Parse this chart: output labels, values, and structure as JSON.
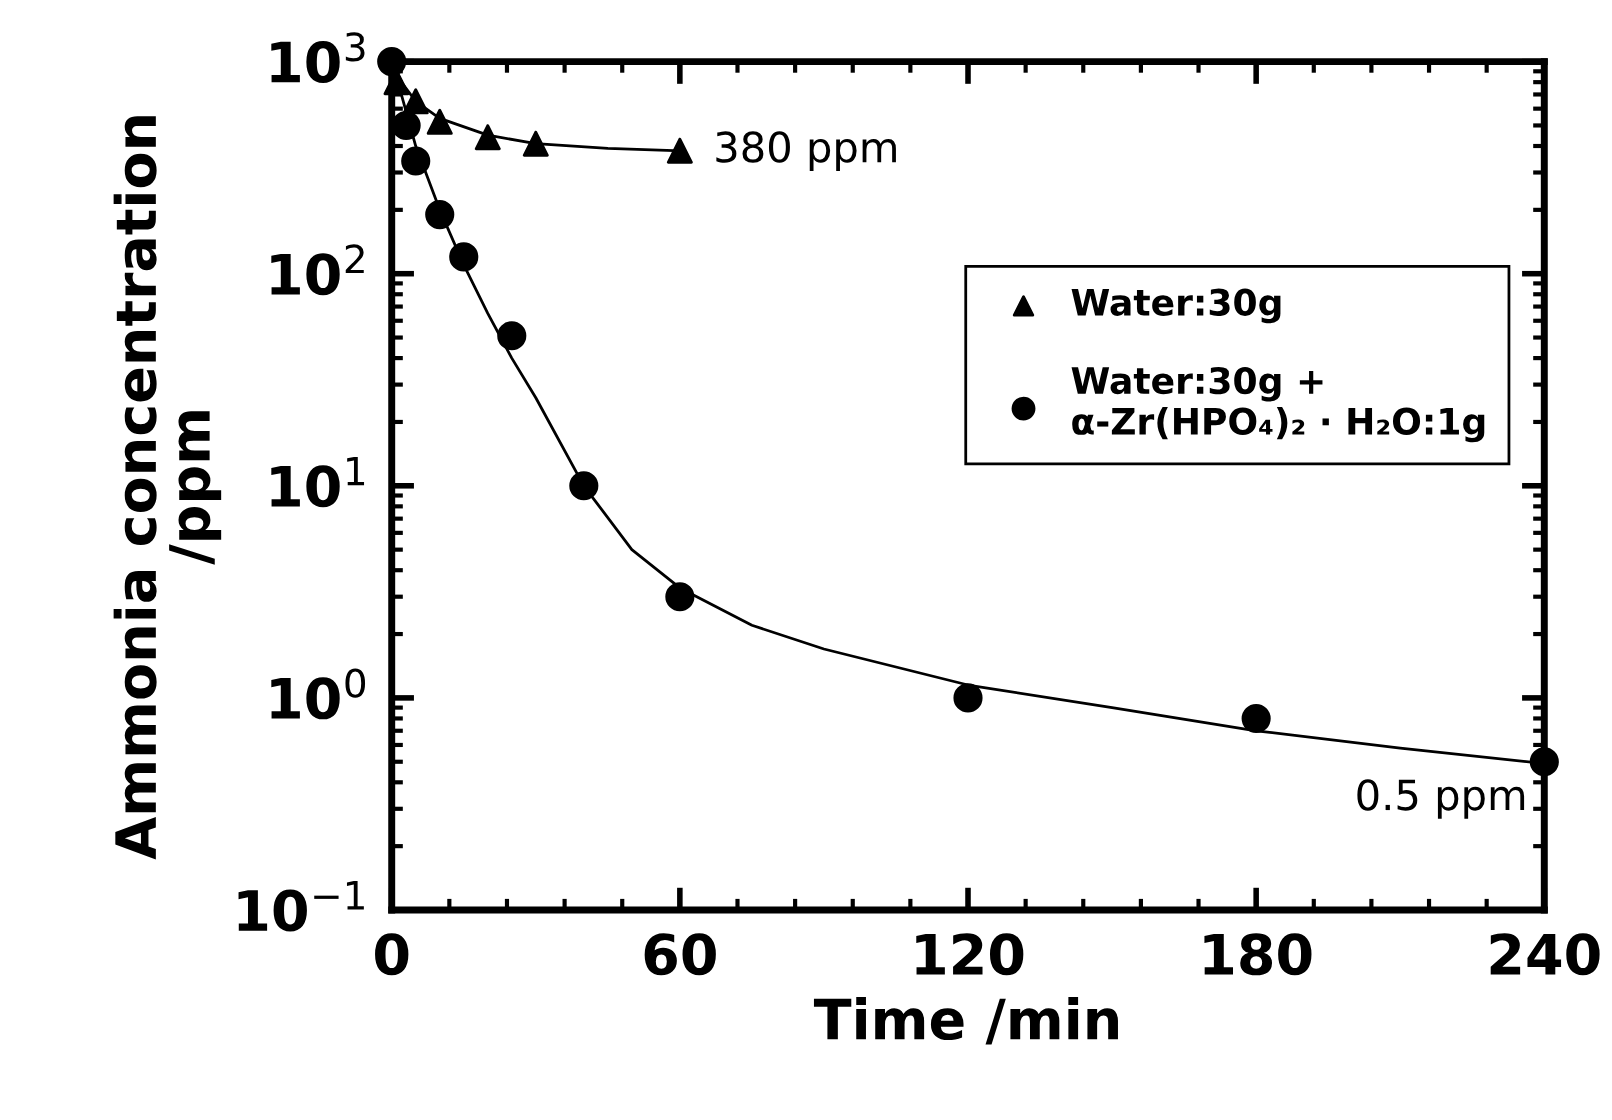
{
  "chart_data": {
    "type": "scatter",
    "xlabel": "Time /min",
    "ylabel": "Ammonia concentration\n/ppm",
    "series": [
      {
        "name": "Water:30g",
        "color": "#000000",
        "marker": "triangle",
        "x": [
          1,
          5,
          10,
          20,
          30,
          60
        ],
        "values": [
          800,
          650,
          520,
          440,
          410,
          380
        ]
      },
      {
        "name": "Water:30g +\nα-Zr(HPO₄)₂ · H₂O:1g",
        "color": "#000000",
        "marker": "circle",
        "x": [
          0,
          3,
          5,
          10,
          15,
          25,
          40,
          60,
          120,
          180,
          240
        ],
        "values": [
          1000,
          500,
          340,
          190,
          120,
          51,
          10,
          3,
          1,
          0.8,
          0.5
        ]
      },
      {
        "type": "line",
        "color": "#000000",
        "marker": "none",
        "x": [
          0,
          2,
          5,
          10,
          20,
          30,
          45,
          60
        ],
        "values": [
          1000,
          800,
          650,
          540,
          450,
          410,
          390,
          380
        ]
      },
      {
        "type": "line",
        "color": "#000000",
        "marker": "none",
        "x": [
          0,
          2,
          5,
          10,
          15,
          20,
          25,
          30,
          40,
          50,
          60,
          75,
          90,
          120,
          150,
          180,
          210,
          240
        ],
        "values": [
          1000,
          700,
          400,
          200,
          110,
          65,
          40,
          26,
          10,
          5,
          3.3,
          2.2,
          1.7,
          1.15,
          0.9,
          0.7,
          0.58,
          0.49
        ]
      }
    ],
    "log": "y",
    "xlim": [
      0,
      240
    ],
    "xticks": [
      0,
      60,
      120,
      180,
      240
    ],
    "ylim": [
      0.1,
      1000
    ],
    "yticks": [
      {
        "value": 0.1,
        "label": "10$^{−1}$"
      },
      {
        "value": 1,
        "label": "10$^{0}$"
      },
      {
        "value": 10,
        "label": "10$^{1}$"
      },
      {
        "value": 100,
        "label": "10$^{2}$"
      },
      {
        "value": 1000,
        "label": "10$^{3}$"
      }
    ],
    "annotations": [
      {
        "text": "380 ppm",
        "x": 60,
        "y": 380
      },
      {
        "text": "0.5 ppm",
        "x": 240,
        "y": 0.5
      }
    ],
    "legend": "top right",
    "grid": false
  }
}
